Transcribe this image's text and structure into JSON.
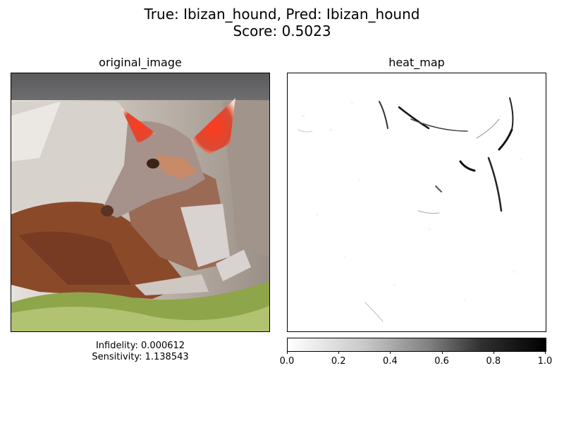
{
  "figure": {
    "title_line1": "True: Ibizan_hound, Pred: Ibizan_hound",
    "title_line2": "Score: 0.5023"
  },
  "left_panel": {
    "title": "original_image",
    "caption_line1": "Infidelity: 0.000612",
    "caption_line2": "Sensitivity: 1.138543"
  },
  "right_panel": {
    "title": "heat_map"
  },
  "chart_data": {
    "type": "heatmap",
    "title": "heat_map",
    "colorbar": {
      "range": [
        0.0,
        1.0
      ],
      "ticks": [
        "0.0",
        "0.2",
        "0.4",
        "0.6",
        "0.8",
        "1.0"
      ],
      "colormap": "gray_r (white=0, black=1)"
    }
  },
  "colors": {
    "background": "#ffffff",
    "text": "#000000"
  }
}
